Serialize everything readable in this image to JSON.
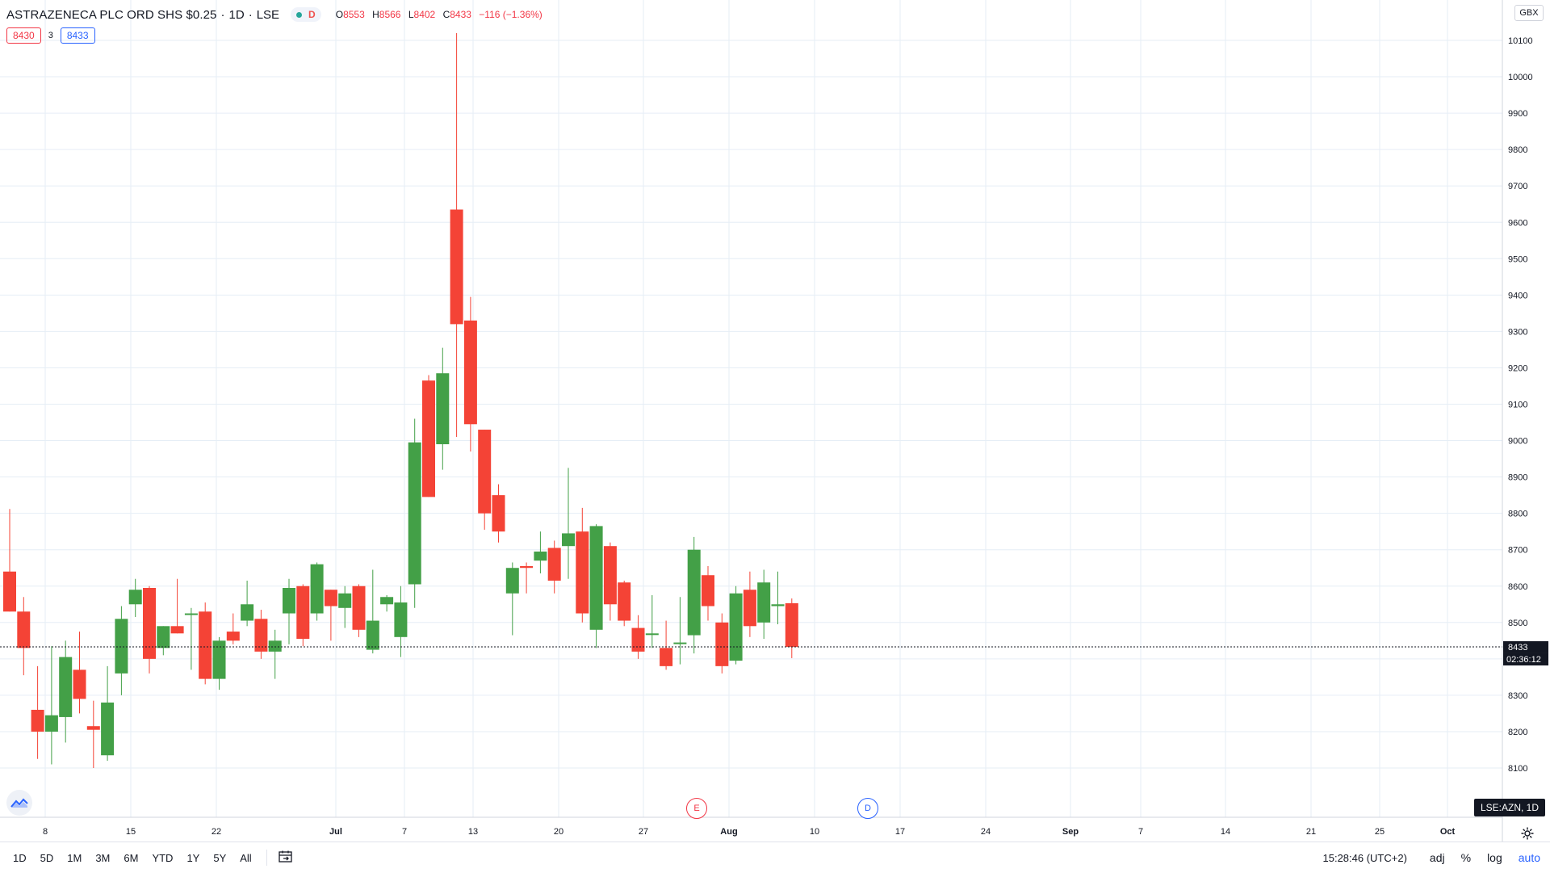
{
  "legend": {
    "title": "ASTRAZENECA PLC ORD SHS $0.25",
    "interval": "1D",
    "exchange": "LSE",
    "status_letter": "D",
    "open_label": "O",
    "open": "8553",
    "high_label": "H",
    "high": "8566",
    "low_label": "L",
    "low": "8402",
    "close_label": "C",
    "close": "8433",
    "change": "−116 (−1.36%)"
  },
  "quote": {
    "bid": "8430",
    "spread": "3",
    "ask": "8433"
  },
  "currency": "GBX",
  "price_tags": {
    "last": "8433",
    "countdown": "02:36:12"
  },
  "symbol_tag": "LSE:AZN, 1D",
  "events": {
    "earnings": "E",
    "dividend": "D"
  },
  "bottom_bar": {
    "ranges": [
      "1D",
      "5D",
      "1M",
      "3M",
      "6M",
      "YTD",
      "1Y",
      "5Y",
      "All"
    ],
    "time": "15:28:46 (UTC+2)",
    "adj": "adj",
    "percent": "%",
    "log": "log",
    "auto": "auto"
  },
  "colors": {
    "up": "#43a047",
    "down": "#f44336",
    "grid": "#e6eef6",
    "accent": "#2962ff"
  },
  "icons": [
    "chart-logo-icon",
    "calendar-range-icon",
    "gear-icon"
  ],
  "chart_data": {
    "type": "candlestick",
    "title": "ASTRAZENECA PLC ORD SHS $0.25",
    "ylim": [
      8030,
      10130
    ],
    "y_ticks": [
      8100,
      8200,
      8300,
      8400,
      8500,
      8600,
      8700,
      8800,
      8900,
      9000,
      9100,
      9200,
      9300,
      9400,
      9500,
      9600,
      9700,
      9800,
      9900,
      10000,
      10100
    ],
    "x_ticks": [
      "8",
      "15",
      "22",
      "Jul",
      "7",
      "13",
      "20",
      "27",
      "Aug",
      "10",
      "17",
      "24",
      "Sep",
      "7",
      "14",
      "21",
      "25",
      "Oct"
    ],
    "last_price": 8433,
    "candles": [
      {
        "o": 8640,
        "h": 8812,
        "l": 8530,
        "c": 8530
      },
      {
        "o": 8530,
        "h": 8570,
        "l": 8355,
        "c": 8430
      },
      {
        "o": 8260,
        "h": 8380,
        "l": 8125,
        "c": 8200
      },
      {
        "o": 8200,
        "h": 8435,
        "l": 8110,
        "c": 8245
      },
      {
        "o": 8240,
        "h": 8450,
        "l": 8170,
        "c": 8405
      },
      {
        "o": 8370,
        "h": 8475,
        "l": 8250,
        "c": 8290
      },
      {
        "o": 8215,
        "h": 8285,
        "l": 8100,
        "c": 8205
      },
      {
        "o": 8135,
        "h": 8380,
        "l": 8120,
        "c": 8280
      },
      {
        "o": 8360,
        "h": 8545,
        "l": 8300,
        "c": 8510
      },
      {
        "o": 8550,
        "h": 8620,
        "l": 8515,
        "c": 8590
      },
      {
        "o": 8595,
        "h": 8600,
        "l": 8360,
        "c": 8400
      },
      {
        "o": 8430,
        "h": 8490,
        "l": 8410,
        "c": 8490
      },
      {
        "o": 8490,
        "h": 8620,
        "l": 8470,
        "c": 8470
      },
      {
        "o": 8525,
        "h": 8540,
        "l": 8370,
        "c": 8525
      },
      {
        "o": 8530,
        "h": 8555,
        "l": 8330,
        "c": 8345
      },
      {
        "o": 8345,
        "h": 8460,
        "l": 8315,
        "c": 8450
      },
      {
        "o": 8475,
        "h": 8525,
        "l": 8440,
        "c": 8450
      },
      {
        "o": 8505,
        "h": 8615,
        "l": 8490,
        "c": 8550
      },
      {
        "o": 8510,
        "h": 8535,
        "l": 8400,
        "c": 8420
      },
      {
        "o": 8420,
        "h": 8480,
        "l": 8345,
        "c": 8450
      },
      {
        "o": 8525,
        "h": 8620,
        "l": 8440,
        "c": 8595
      },
      {
        "o": 8600,
        "h": 8605,
        "l": 8435,
        "c": 8455
      },
      {
        "o": 8525,
        "h": 8665,
        "l": 8505,
        "c": 8660
      },
      {
        "o": 8590,
        "h": 8590,
        "l": 8450,
        "c": 8545
      },
      {
        "o": 8540,
        "h": 8600,
        "l": 8485,
        "c": 8580
      },
      {
        "o": 8600,
        "h": 8605,
        "l": 8460,
        "c": 8480
      },
      {
        "o": 8425,
        "h": 8645,
        "l": 8415,
        "c": 8505
      },
      {
        "o": 8550,
        "h": 8575,
        "l": 8530,
        "c": 8570
      },
      {
        "o": 8460,
        "h": 8600,
        "l": 8405,
        "c": 8555
      },
      {
        "o": 8605,
        "h": 9060,
        "l": 8540,
        "c": 8995
      },
      {
        "o": 9165,
        "h": 9180,
        "l": 8845,
        "c": 8845
      },
      {
        "o": 8990,
        "h": 9255,
        "l": 8920,
        "c": 9185
      },
      {
        "o": 9635,
        "h": 10120,
        "l": 9010,
        "c": 9320
      },
      {
        "o": 9330,
        "h": 9395,
        "l": 8970,
        "c": 9045
      },
      {
        "o": 9030,
        "h": 9030,
        "l": 8755,
        "c": 8800
      },
      {
        "o": 8850,
        "h": 8880,
        "l": 8720,
        "c": 8750
      },
      {
        "o": 8580,
        "h": 8665,
        "l": 8465,
        "c": 8650
      },
      {
        "o": 8655,
        "h": 8665,
        "l": 8580,
        "c": 8650
      },
      {
        "o": 8670,
        "h": 8750,
        "l": 8635,
        "c": 8695
      },
      {
        "o": 8705,
        "h": 8725,
        "l": 8580,
        "c": 8615
      },
      {
        "o": 8710,
        "h": 8925,
        "l": 8620,
        "c": 8745
      },
      {
        "o": 8750,
        "h": 8815,
        "l": 8500,
        "c": 8525
      },
      {
        "o": 8480,
        "h": 8770,
        "l": 8430,
        "c": 8765
      },
      {
        "o": 8710,
        "h": 8720,
        "l": 8505,
        "c": 8550
      },
      {
        "o": 8610,
        "h": 8615,
        "l": 8490,
        "c": 8505
      },
      {
        "o": 8485,
        "h": 8520,
        "l": 8400,
        "c": 8420
      },
      {
        "o": 8470,
        "h": 8575,
        "l": 8430,
        "c": 8470
      },
      {
        "o": 8430,
        "h": 8505,
        "l": 8370,
        "c": 8380
      },
      {
        "o": 8445,
        "h": 8570,
        "l": 8385,
        "c": 8445
      },
      {
        "o": 8465,
        "h": 8735,
        "l": 8415,
        "c": 8700
      },
      {
        "o": 8630,
        "h": 8655,
        "l": 8505,
        "c": 8545
      },
      {
        "o": 8500,
        "h": 8525,
        "l": 8360,
        "c": 8380
      },
      {
        "o": 8395,
        "h": 8600,
        "l": 8385,
        "c": 8580
      },
      {
        "o": 8590,
        "h": 8640,
        "l": 8460,
        "c": 8490
      },
      {
        "o": 8500,
        "h": 8645,
        "l": 8455,
        "c": 8610
      },
      {
        "o": 8545,
        "h": 8640,
        "l": 8495,
        "c": 8550
      },
      {
        "o": 8553,
        "h": 8566,
        "l": 8402,
        "c": 8433
      }
    ]
  }
}
